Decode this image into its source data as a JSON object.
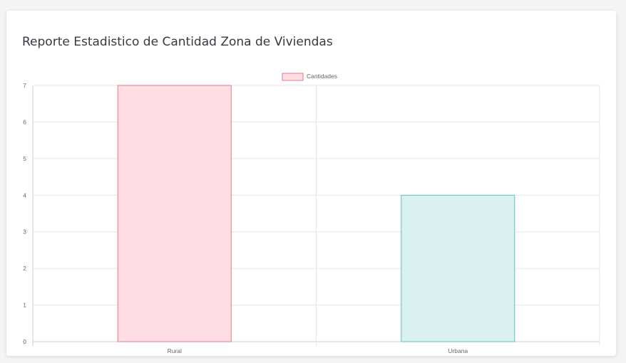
{
  "card": {
    "title": "Reporte Estadistico de Cantidad Zona de Viviendas"
  },
  "chart_data": {
    "type": "bar",
    "categories": [
      "Rural",
      "Urbana"
    ],
    "series": [
      {
        "name": "Cantidades",
        "values": [
          7,
          4
        ]
      }
    ],
    "bar_fills": [
      "#ffdde3",
      "#dbf0f0"
    ],
    "bar_strokes": [
      "#e07a8f",
      "#5cc1bc"
    ],
    "legend": {
      "label": "Cantidades",
      "placement": "top-center",
      "swatch_fill": "#ffdde3",
      "swatch_stroke": "#e07a8f"
    },
    "ylim": [
      0,
      7
    ],
    "yticks": [
      "0",
      "1",
      "2",
      "3",
      "4",
      "5",
      "6",
      "7"
    ],
    "grid": true,
    "title": "",
    "xlabel": "",
    "ylabel": ""
  }
}
